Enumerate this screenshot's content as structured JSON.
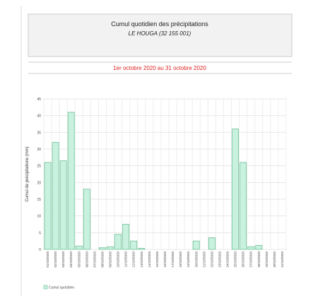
{
  "chart_data": {
    "type": "bar",
    "title": "Cumul quotidien des précipitations",
    "subtitle": "LE HOUGA (32 155 001)",
    "period": "1er octobre 2020 au 31 octobre 2020",
    "ylabel": "Cumul de précipitations (mm)",
    "categories": [
      "01/10/2020",
      "02/10/2020",
      "03/10/2020",
      "04/10/2020",
      "05/10/2020",
      "06/10/2020",
      "07/10/2020",
      "08/10/2020",
      "09/10/2020",
      "10/10/2020",
      "11/10/2020",
      "12/10/2020",
      "13/10/2020",
      "14/10/2020",
      "15/10/2020",
      "16/10/2020",
      "17/10/2020",
      "18/10/2020",
      "19/10/2020",
      "20/10/2020",
      "21/10/2020",
      "22/10/2020",
      "23/10/2020",
      "24/10/2020",
      "25/10/2020",
      "26/10/2020",
      "27/10/2020",
      "28/10/2020",
      "29/10/2020",
      "30/10/2020",
      "31/10/2020"
    ],
    "series": [
      {
        "name": "Cumul quotidien",
        "color": "#c9f1df",
        "stroke": "#6cc196",
        "values": [
          26,
          32,
          26.5,
          41,
          1,
          18,
          0,
          0.5,
          0.8,
          4.5,
          7.5,
          2.5,
          0.3,
          0,
          0,
          0,
          0,
          0,
          0,
          2.5,
          0,
          3.5,
          0,
          0,
          36,
          26,
          0.8,
          1.2,
          0,
          0,
          0
        ]
      }
    ],
    "ylim": [
      0,
      45
    ],
    "yticks": [
      0,
      5,
      10,
      15,
      20,
      25,
      30,
      35,
      40,
      45
    ],
    "grid": true
  }
}
